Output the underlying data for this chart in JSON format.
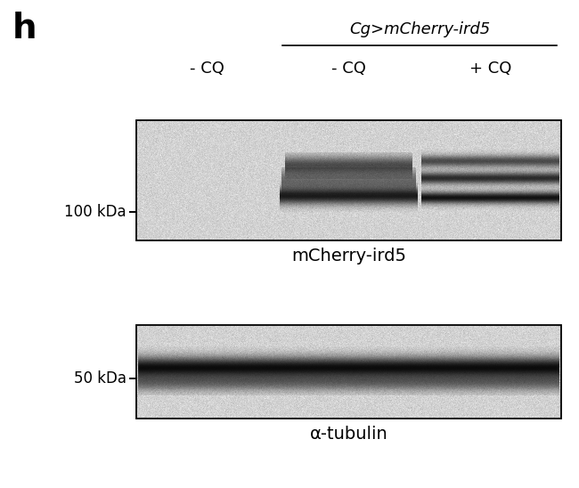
{
  "panel_label": "h",
  "italic_label": "Cg>mCherry-ird5",
  "col_labels_left": "- CQ",
  "col_labels_mid": "- CQ",
  "col_labels_right": "+ CQ",
  "kda_label_top": "100 kDa",
  "kda_label_bot": "50 kDa",
  "blot_label_top": "mCherry-ird5",
  "blot_label_bot": "α-tubulin",
  "bg_color": "#ffffff",
  "blot_bg_light": 210,
  "blot_noise_std": 8,
  "fig_w": 6.5,
  "fig_h": 5.48,
  "dpi": 100
}
